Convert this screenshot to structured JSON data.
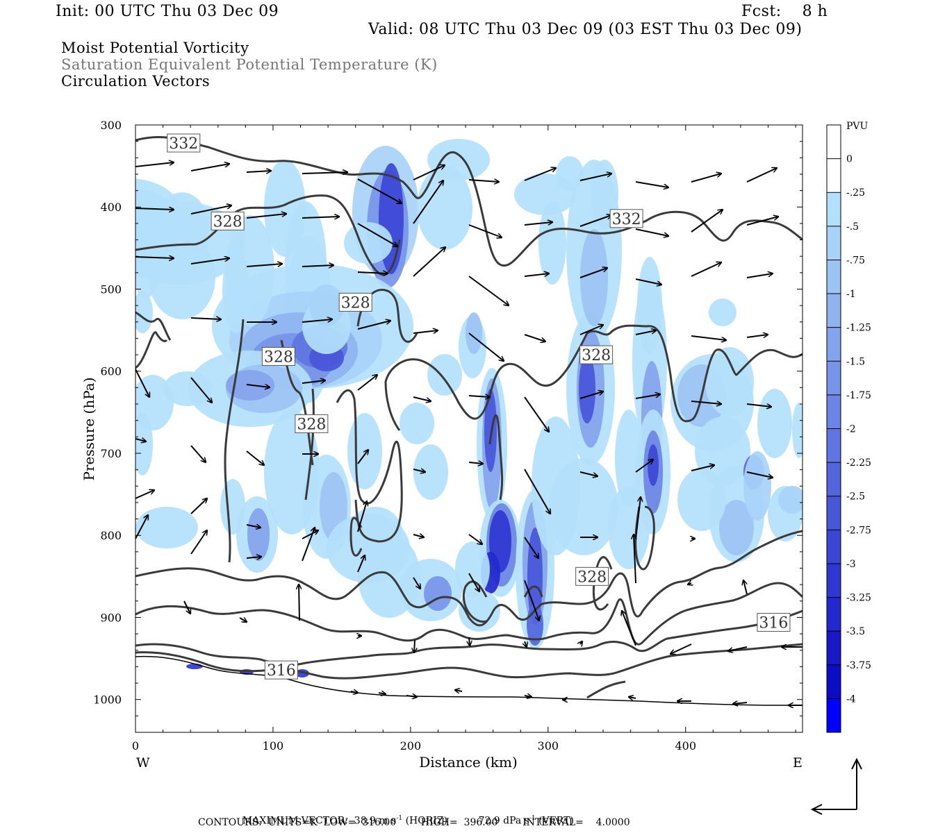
{
  "header": {
    "init": "Init: 00 UTC Thu 03 Dec 09",
    "fcst": "Fcst:    8 h",
    "valid": "Valid: 08 UTC Thu 03 Dec 09 (03 EST Thu 03 Dec 09)",
    "fields": [
      "Moist Potential Vorticity",
      "Saturation Equivalent Potential Temperature (K)",
      "Circulation Vectors"
    ]
  },
  "chart_data": {
    "type": "contour",
    "xlabel": "Distance (km)",
    "ylabel": "Pressure (hPa)",
    "xlim": [
      0,
      485
    ],
    "ylim": [
      300,
      1040
    ],
    "x_ticks": [
      0,
      100,
      200,
      300,
      400
    ],
    "y_ticks": [
      300,
      400,
      500,
      600,
      700,
      800,
      900,
      1000
    ],
    "x_end_labels": {
      "left": "W",
      "right": "E"
    },
    "colorbar": {
      "unit": "PVU",
      "labels": [
        "0",
        "-.25",
        "-.5",
        "-.75",
        "-1",
        "-1.25",
        "-1.5",
        "-1.75",
        "-2",
        "-2.25",
        "-2.5",
        "-2.75",
        "-3",
        "-3.25",
        "-3.5",
        "-3.75",
        "-4"
      ],
      "colors": [
        "#ffffff",
        "#ffffff",
        "#b3e0fc",
        "#a8d2f8",
        "#9cc3f4",
        "#90b3f0",
        "#84a3ec",
        "#7894e8",
        "#6c84e4",
        "#6075e0",
        "#5465dc",
        "#4856d8",
        "#3c46d4",
        "#3037d0",
        "#2428cc",
        "#1818c8",
        "#0c0cc4",
        "#0000ff"
      ]
    },
    "contour_labels": [
      {
        "x": 35,
        "p": 322,
        "text": "332"
      },
      {
        "x": 67,
        "p": 417,
        "text": "328"
      },
      {
        "x": 104,
        "p": 582,
        "text": "328"
      },
      {
        "x": 160,
        "p": 516,
        "text": "328"
      },
      {
        "x": 128,
        "p": 664,
        "text": "328"
      },
      {
        "x": 357,
        "p": 414,
        "text": "332"
      },
      {
        "x": 335,
        "p": 580,
        "text": "328"
      },
      {
        "x": 332,
        "p": 850,
        "text": "328"
      },
      {
        "x": 464,
        "p": 906,
        "text": "316"
      },
      {
        "x": 106,
        "p": 964,
        "text": "316"
      }
    ],
    "footer": {
      "max_vector_label": "MAXIMUM VECTOR:",
      "horiz": "38.9 m s",
      "horiz_unit": " (HORIZ)",
      "vert": "72.9 dPa s",
      "vert_unit": " (VERT)",
      "exponent": "-1",
      "contours": "CONTOURS:  UNITS=K  LOW=  316.00        HIGH=  396.00        INTERVAL=    4.0000"
    }
  }
}
